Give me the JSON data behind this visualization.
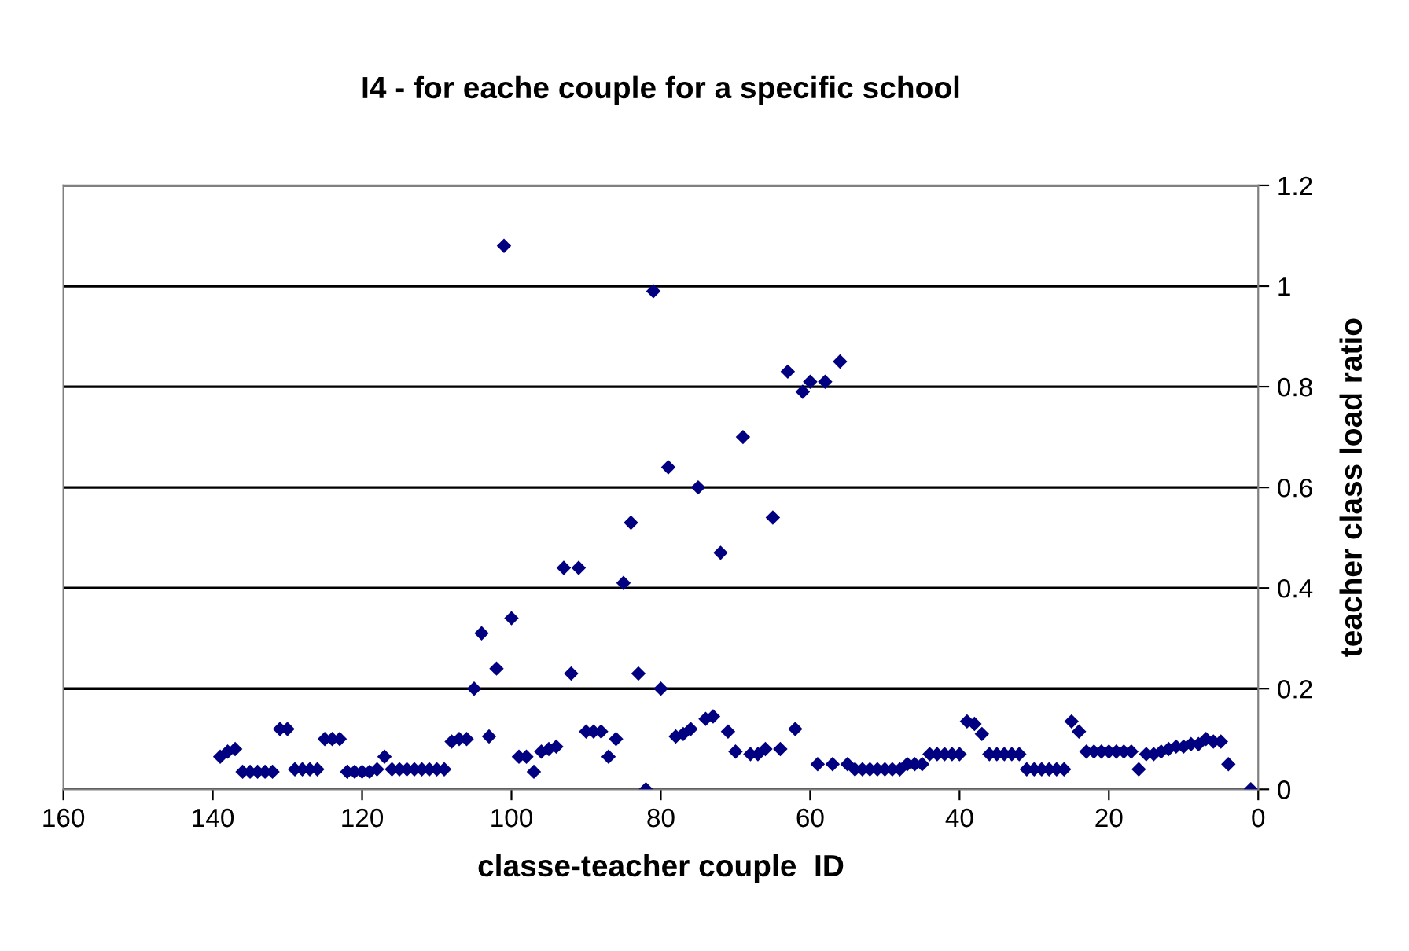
{
  "chart_data": {
    "type": "scatter",
    "title": "I4 - for eache couple for a specific school",
    "xlabel": "classe-teacher couple  ID",
    "ylabel": "teacher class load ratio",
    "x": [
      139,
      138,
      137,
      136,
      135,
      134,
      133,
      132,
      131,
      130,
      129,
      128,
      127,
      126,
      125,
      124,
      123,
      122,
      121,
      120,
      119,
      118,
      117,
      116,
      115,
      114,
      113,
      112,
      111,
      110,
      109,
      108,
      107,
      106,
      105,
      104,
      103,
      102,
      101,
      100,
      99,
      98,
      97,
      96,
      95,
      94,
      93,
      92,
      91,
      90,
      89,
      88,
      87,
      86,
      85,
      84,
      83,
      82,
      81,
      80,
      79,
      78,
      77,
      76,
      75,
      74,
      73,
      72,
      71,
      70,
      69,
      68,
      67,
      66,
      65,
      64,
      63,
      62,
      61,
      60,
      59,
      58,
      57,
      56,
      55,
      54,
      53,
      52,
      51,
      50,
      49,
      48,
      47,
      46,
      45,
      44,
      43,
      42,
      41,
      40,
      39,
      38,
      37,
      36,
      35,
      34,
      33,
      32,
      31,
      30,
      29,
      28,
      27,
      26,
      25,
      24,
      23,
      22,
      21,
      20,
      19,
      18,
      17,
      16,
      15,
      14,
      13,
      12,
      11,
      10,
      9,
      8,
      7,
      6,
      5,
      4,
      1
    ],
    "series": [
      {
        "color": "#000080",
        "values": [
          0.065,
          0.075,
          0.08,
          0.035,
          0.035,
          0.035,
          0.035,
          0.035,
          0.12,
          0.12,
          0.04,
          0.04,
          0.04,
          0.04,
          0.1,
          0.1,
          0.1,
          0.035,
          0.035,
          0.035,
          0.035,
          0.04,
          0.065,
          0.04,
          0.04,
          0.04,
          0.04,
          0.04,
          0.04,
          0.04,
          0.04,
          0.095,
          0.1,
          0.1,
          0.2,
          0.31,
          0.105,
          0.24,
          1.08,
          0.34,
          0.065,
          0.065,
          0.035,
          0.075,
          0.08,
          0.085,
          0.44,
          0.23,
          0.44,
          0.115,
          0.115,
          0.115,
          0.065,
          0.1,
          0.41,
          0.53,
          0.23,
          0.0,
          0.99,
          0.2,
          0.64,
          0.105,
          0.11,
          0.12,
          0.6,
          0.14,
          0.145,
          0.47,
          0.115,
          0.075,
          0.7,
          0.07,
          0.07,
          0.08,
          0.54,
          0.08,
          0.83,
          0.12,
          0.79,
          0.81,
          0.05,
          0.81,
          0.05,
          0.85,
          0.05,
          0.04,
          0.04,
          0.04,
          0.04,
          0.04,
          0.04,
          0.04,
          0.05,
          0.05,
          0.05,
          0.07,
          0.07,
          0.07,
          0.07,
          0.07,
          0.135,
          0.13,
          0.11,
          0.07,
          0.07,
          0.07,
          0.07,
          0.07,
          0.04,
          0.04,
          0.04,
          0.04,
          0.04,
          0.04,
          0.135,
          0.115,
          0.075,
          0.075,
          0.075,
          0.075,
          0.075,
          0.075,
          0.075,
          0.04,
          0.07,
          0.07,
          0.075,
          0.08,
          0.085,
          0.085,
          0.09,
          0.09,
          0.1,
          0.095,
          0.095,
          0.05,
          0.0
        ]
      }
    ],
    "xlim": [
      160,
      0
    ],
    "xticks": [
      160,
      140,
      120,
      100,
      80,
      60,
      40,
      20,
      0
    ],
    "ylim": [
      0,
      1.2
    ],
    "yticks": [
      0,
      0.2,
      0.4,
      0.6,
      0.8,
      1,
      1.2
    ],
    "grid": "y",
    "marker": "diamond",
    "legend": false
  }
}
